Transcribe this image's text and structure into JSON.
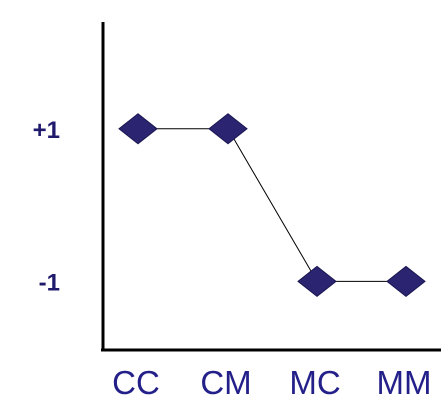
{
  "chart_data": {
    "type": "line",
    "categories": [
      "CC",
      "CM",
      "MC",
      "MM"
    ],
    "series": [
      {
        "values": [
          1,
          1,
          -1,
          -1
        ]
      }
    ],
    "y_ticks": [
      {
        "value": 1,
        "label": "+1"
      },
      {
        "value": -1,
        "label": "-1"
      }
    ],
    "ylim": [
      -1.9,
      2.4
    ],
    "title": "",
    "xlabel": "",
    "ylabel": "",
    "grid": false,
    "marker": "diamond",
    "marker_color": "#2b2470",
    "line_color": "#000000",
    "tick_label_color": "#24208a"
  }
}
